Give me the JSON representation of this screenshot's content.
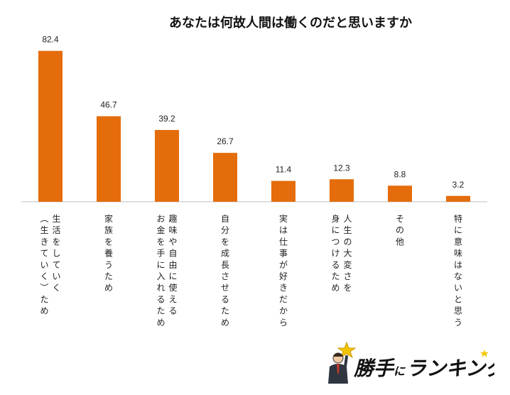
{
  "chart_data": {
    "type": "bar",
    "title": "あなたは何故人間は働くのだと思いますか",
    "categories": [
      "生活をしていく（生きていく）ため",
      "家族を養うため",
      "趣味や自由に使えるお金を手に入れるため",
      "自分を成長させるため",
      "実は仕事が好きだから",
      "人生の大変さを身につけるため",
      "その他",
      "特に意味はないと思う"
    ],
    "category_columns": [
      [
        "生活をしていく",
        "（生きていく）ため"
      ],
      [
        "家族を養うため"
      ],
      [
        "趣味や自由に使える",
        "お金を手に入れるため"
      ],
      [
        "自分を成長させるため"
      ],
      [
        "実は仕事が好きだから"
      ],
      [
        "人生の大変さを",
        "身につけるため"
      ],
      [
        "その他"
      ],
      [
        "特に意味はないと思う"
      ]
    ],
    "values": [
      82.4,
      46.7,
      39.2,
      26.7,
      11.4,
      12.3,
      8.8,
      3.2
    ],
    "value_labels": [
      "82.4",
      "46.7",
      "39.2",
      "26.7",
      "11.4",
      "12.3",
      "8.8",
      "3.2"
    ],
    "xlabel": "",
    "ylabel": "",
    "ylim": [
      0,
      90
    ],
    "grid": false,
    "legend": "none",
    "bar_color": "#E46C0A"
  },
  "logo": {
    "text": "勝手にランキング",
    "colors": {
      "primary": "#111111",
      "star": "#F2C500"
    },
    "icon": "businessman-with-star-icon"
  }
}
